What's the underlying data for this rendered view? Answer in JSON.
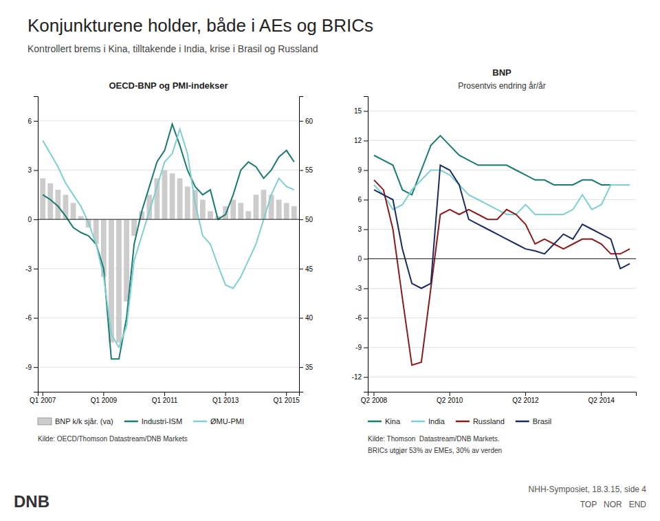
{
  "title": "Konjunkturene holder, både i AEs og BRICs",
  "subtitle": "Kontrollert brems i Kina, tilltakende i India, krise i Brasil og Russland",
  "annotations": [
    "DNB",
    "NHH-Symposiet, 18.3.15, side 4",
    "TOP   NOR   END"
  ],
  "chart_data": [
    {
      "type": "bar",
      "title": "OECD-BNP  og PMI-indekser",
      "categories": [
        "Q1 2007",
        null,
        null,
        null,
        null,
        null,
        null,
        null,
        "Q1 2009",
        null,
        null,
        null,
        null,
        null,
        null,
        null,
        "Q1 2011",
        null,
        null,
        null,
        null,
        null,
        null,
        null,
        "Q1 2013",
        null,
        null,
        null,
        null,
        null,
        null,
        null,
        "Q1 2015",
        null
      ],
      "series": [
        {
          "name": "BNP k/k sjår. (va)",
          "type": "bar",
          "color": "#cccccc",
          "values": [
            2.5,
            2.2,
            1.8,
            1.5,
            1.0,
            0.2,
            -0.5,
            -1.5,
            -3.5,
            -7.5,
            -7.5,
            -5.0,
            -1.0,
            0.5,
            1.5,
            2.5,
            3.0,
            2.8,
            2.5,
            2.0,
            1.8,
            1.2,
            0.5,
            0.2,
            0.8,
            1.2,
            1.0,
            0.5,
            1.5,
            1.8,
            1.5,
            1.2,
            1.0,
            0.8
          ]
        },
        {
          "name": "Industri-ISM",
          "type": "line",
          "color": "#1a7a6e",
          "values": [
            1.5,
            1.2,
            0.8,
            0.2,
            -0.5,
            -0.8,
            -1.0,
            -1.5,
            -3.0,
            -8.5,
            -8.5,
            -6.0,
            -1.5,
            0.5,
            2.0,
            3.5,
            4.2,
            5.8,
            4.5,
            3.0,
            2.0,
            1.5,
            1.8,
            0.0,
            0.3,
            1.5,
            3.0,
            3.5,
            3.2,
            2.5,
            3.0,
            3.8,
            4.2,
            3.5
          ]
        },
        {
          "name": "ØMU-PMI",
          "type": "line",
          "color": "#7ecfcf",
          "values": [
            4.8,
            4.0,
            3.2,
            2.2,
            1.5,
            0.8,
            -0.2,
            -1.5,
            -3.5,
            -7.0,
            -7.8,
            -6.5,
            -2.5,
            -1.0,
            0.5,
            2.0,
            3.5,
            4.0,
            5.5,
            4.0,
            1.0,
            -1.0,
            -1.5,
            -2.8,
            -4.0,
            -4.2,
            -3.5,
            -2.5,
            -1.5,
            0.0,
            1.5,
            2.5,
            2.0,
            1.8
          ]
        }
      ],
      "ylim": [
        -10.5,
        7.5
      ],
      "yticks": [
        -9,
        -6,
        -3,
        0,
        3,
        6
      ],
      "y2lim": [
        32.5,
        62.5
      ],
      "y2ticks": [
        35,
        40,
        45,
        50,
        55,
        60
      ],
      "grid": true,
      "legend": "bottom",
      "annotations": [
        "Kilde: OECD/Thomson Datastream/DNB Markets"
      ]
    },
    {
      "type": "line",
      "title": "BNP",
      "subtitle": "Prosentvis endring år/år",
      "categories": [
        "Q2 2008",
        null,
        null,
        null,
        null,
        null,
        null,
        null,
        "Q2 2010",
        null,
        null,
        null,
        null,
        null,
        null,
        null,
        "Q2 2012",
        null,
        null,
        null,
        null,
        null,
        null,
        null,
        "Q2 2014",
        null,
        null,
        null
      ],
      "series": [
        {
          "name": "Kina",
          "color": "#1a7a6e",
          "values": [
            10.5,
            10.0,
            9.5,
            7.0,
            6.5,
            9.0,
            11.5,
            12.5,
            11.5,
            10.5,
            10.0,
            9.5,
            9.5,
            9.5,
            9.5,
            9.0,
            8.5,
            8.0,
            8.0,
            7.5,
            7.5,
            7.5,
            8.0,
            8.0,
            7.5,
            7.5,
            7.5,
            7.5
          ]
        },
        {
          "name": "India",
          "color": "#7ecfcf",
          "values": [
            7.5,
            6.5,
            5.0,
            5.5,
            7.0,
            8.0,
            9.0,
            9.0,
            8.5,
            7.5,
            6.5,
            6.0,
            5.5,
            5.0,
            4.5,
            4.5,
            5.5,
            4.5,
            4.5,
            4.5,
            4.5,
            5.0,
            6.5,
            5.0,
            5.5,
            7.5,
            7.5,
            7.5
          ]
        },
        {
          "name": "Russland",
          "color": "#8B1A1A",
          "values": [
            8.0,
            7.0,
            3.0,
            -4.0,
            -10.8,
            -10.5,
            -3.0,
            4.5,
            5.0,
            4.5,
            5.0,
            4.5,
            4.0,
            4.0,
            5.0,
            4.5,
            3.5,
            1.5,
            2.0,
            1.5,
            1.0,
            1.5,
            2.0,
            2.0,
            1.5,
            0.5,
            0.5,
            1.0
          ]
        },
        {
          "name": "Brasil",
          "color": "#1a2a5e",
          "values": [
            7.0,
            6.5,
            6.0,
            1.0,
            -2.5,
            -3.0,
            -2.5,
            9.5,
            9.0,
            7.5,
            4.0,
            3.5,
            3.0,
            2.5,
            2.0,
            1.5,
            1.0,
            0.8,
            0.5,
            1.5,
            2.5,
            2.0,
            3.5,
            3.0,
            2.5,
            2.0,
            -1.0,
            -0.5
          ]
        }
      ],
      "ylim": [
        -13.5,
        16.5
      ],
      "yticks": [
        -12,
        -9,
        -6,
        -3,
        0,
        3,
        6,
        9,
        12,
        15
      ],
      "grid": true,
      "legend": "bottom",
      "annotations": [
        "Kilde: Thomson  Datastream/DNB Markets.",
        "BRICs utgjør 53% av EMEs, 30% av verden"
      ]
    }
  ]
}
